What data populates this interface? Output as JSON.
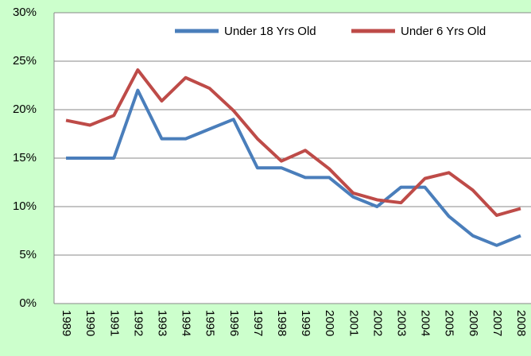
{
  "chart_data": {
    "type": "line",
    "categories": [
      "1989",
      "1990",
      "1991",
      "1992",
      "1993",
      "1994",
      "1995",
      "1996",
      "1997",
      "1998",
      "1999",
      "2000",
      "2001",
      "2002",
      "2003",
      "2004",
      "2005",
      "2006",
      "2007",
      "2008"
    ],
    "series": [
      {
        "name": "Under 18 Yrs Old",
        "color": "#4a7ebb",
        "values": [
          15,
          15,
          15,
          22,
          17,
          17,
          18,
          19,
          14,
          14,
          13,
          13,
          11,
          10,
          12,
          12,
          9,
          7,
          6,
          7
        ]
      },
      {
        "name": "Under 6 Yrs Old",
        "color": "#be4b48",
        "values": [
          18.9,
          18.4,
          19.4,
          24.1,
          20.9,
          23.3,
          22.2,
          19.9,
          17.0,
          14.7,
          15.8,
          13.9,
          11.4,
          10.7,
          10.4,
          12.9,
          13.5,
          11.7,
          9.1,
          9.8
        ]
      }
    ],
    "ylim": [
      0,
      30
    ],
    "yticks": [
      {
        "value": 0,
        "label": "0%"
      },
      {
        "value": 5,
        "label": "5%"
      },
      {
        "value": 10,
        "label": "10%"
      },
      {
        "value": 15,
        "label": "15%"
      },
      {
        "value": 20,
        "label": "20%"
      },
      {
        "value": 25,
        "label": "25%"
      },
      {
        "value": 30,
        "label": "30%"
      }
    ],
    "grid": true,
    "legend": "top-right"
  }
}
